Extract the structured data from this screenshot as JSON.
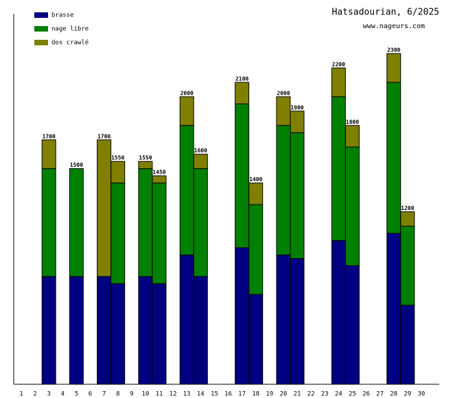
{
  "chart_data": {
    "type": "stacked-bar",
    "title": "Hatsadourian, 6/2025",
    "subtitle": "www.nageurs.com",
    "categories": [
      "1",
      "2",
      "3",
      "4",
      "5",
      "6",
      "7",
      "8",
      "9",
      "10",
      "11",
      "12",
      "13",
      "14",
      "15",
      "16",
      "17",
      "18",
      "19",
      "20",
      "21",
      "22",
      "23",
      "24",
      "25",
      "26",
      "27",
      "28",
      "29",
      "30"
    ],
    "series": [
      {
        "name": "brasse",
        "color": "#000080",
        "values": [
          null,
          null,
          750,
          null,
          750,
          null,
          750,
          700,
          null,
          750,
          700,
          null,
          900,
          750,
          null,
          null,
          950,
          625,
          null,
          900,
          875,
          null,
          null,
          1000,
          825,
          null,
          null,
          1050,
          550,
          null
        ]
      },
      {
        "name": "nage libre",
        "color": "#008000",
        "values": [
          null,
          null,
          750,
          null,
          750,
          null,
          0,
          700,
          null,
          750,
          700,
          null,
          900,
          750,
          null,
          null,
          1000,
          625,
          null,
          900,
          875,
          null,
          null,
          1000,
          825,
          null,
          null,
          1050,
          550,
          null
        ]
      },
      {
        "name": "dos crawlé",
        "color": "#808000",
        "values": [
          null,
          null,
          200,
          null,
          0,
          null,
          950,
          150,
          null,
          50,
          50,
          null,
          200,
          100,
          null,
          null,
          150,
          150,
          null,
          200,
          150,
          null,
          null,
          200,
          150,
          null,
          null,
          200,
          100,
          null
        ]
      }
    ],
    "totals": [
      null,
      null,
      1700,
      null,
      1500,
      null,
      1700,
      1550,
      null,
      1550,
      1450,
      null,
      2000,
      1600,
      null,
      null,
      2100,
      1400,
      null,
      2000,
      1900,
      null,
      null,
      2200,
      1800,
      null,
      null,
      2300,
      1200,
      null
    ],
    "ylim": [
      0,
      2577
    ]
  }
}
